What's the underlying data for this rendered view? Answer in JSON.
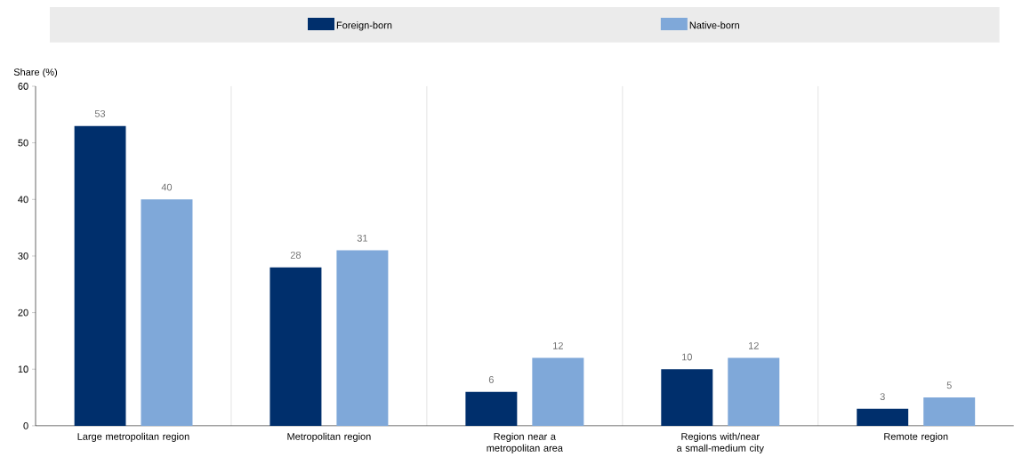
{
  "chart_data": {
    "type": "bar",
    "ylabel": "Share (%)",
    "categories": [
      "Large metropolitan region",
      "Metropolitan region",
      "Region near a metropolitan area",
      "Regions with/near a small-medium city",
      "Remote region"
    ],
    "series": [
      {
        "name": "Foreign-born",
        "color": "#002f6c",
        "values": [
          53,
          28,
          6,
          10,
          3
        ]
      },
      {
        "name": "Native-born",
        "color": "#7fa8d9",
        "values": [
          40,
          31,
          12,
          12,
          5
        ]
      }
    ],
    "ylim": [
      0,
      60
    ],
    "yticks": [
      0,
      10,
      20,
      30,
      40,
      50,
      60
    ],
    "grid": "x",
    "legend": "top",
    "data_labels": true
  }
}
